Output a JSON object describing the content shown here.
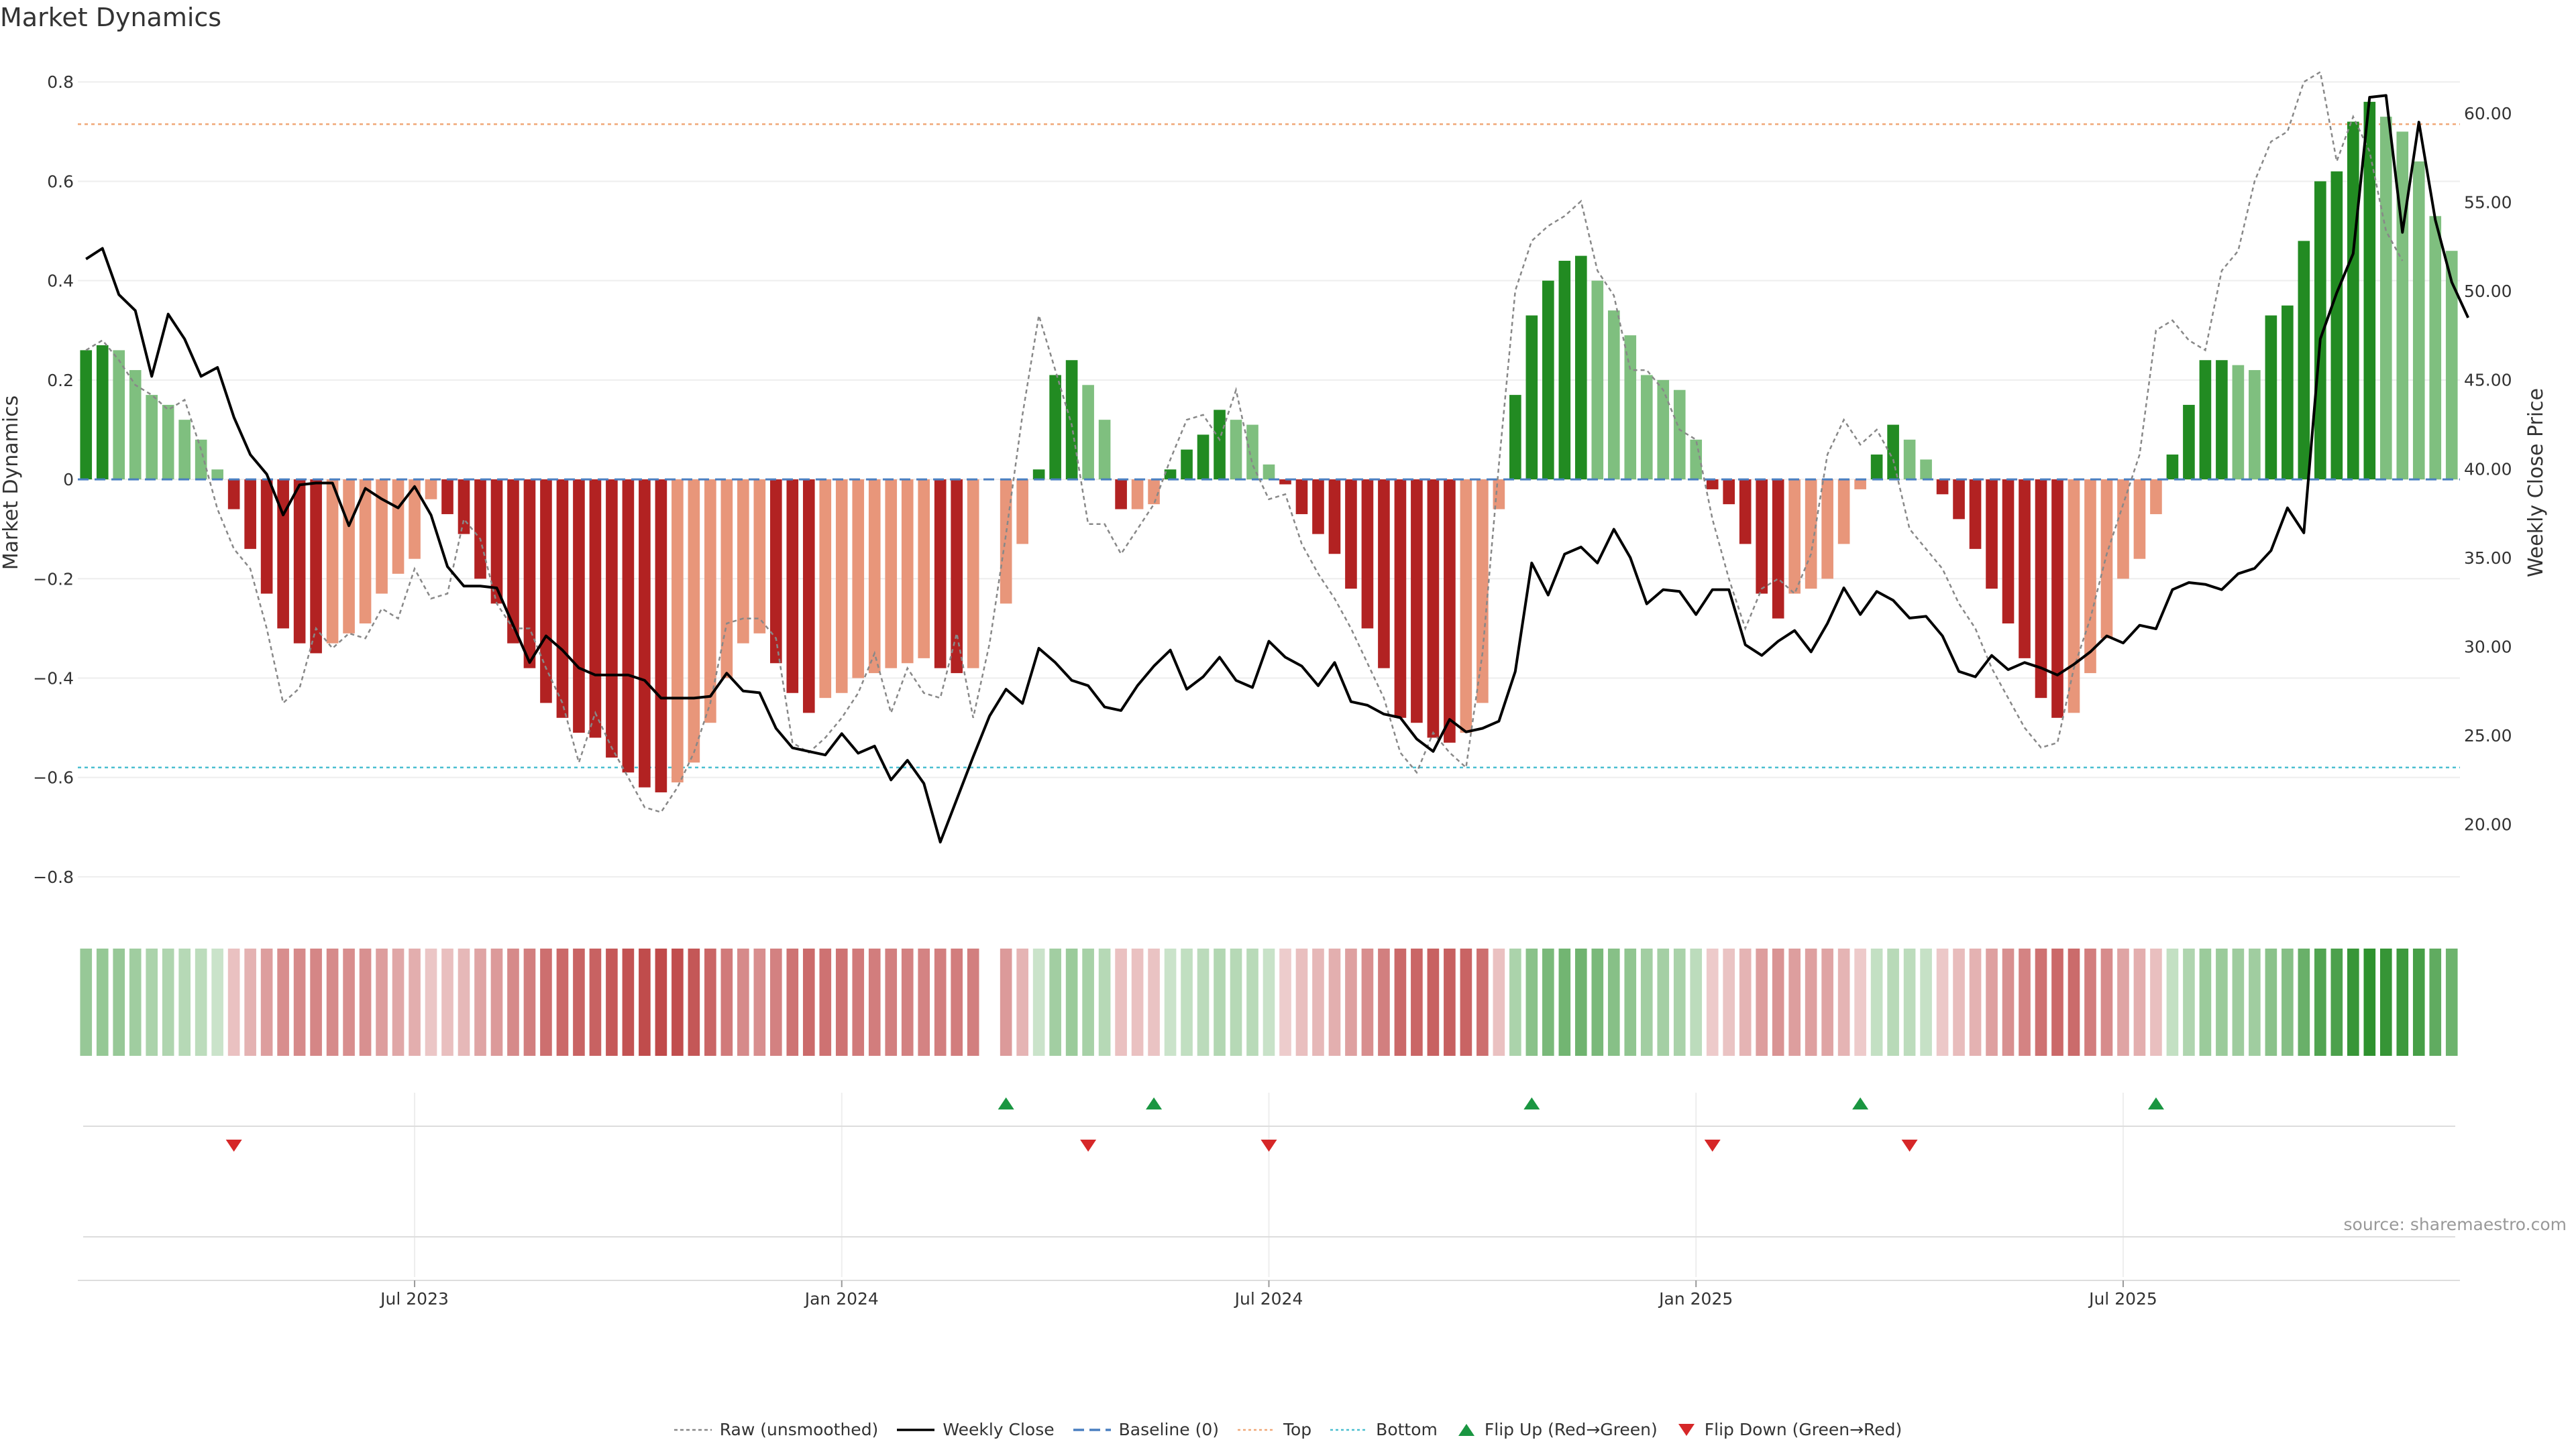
{
  "chart_data": {
    "type": "bar",
    "title": "Market Dynamics",
    "ylabel_left": "Market Dynamics",
    "ylabel_right": "Weekly Close Price",
    "ylim_left": [
      -0.85,
      0.83
    ],
    "ylim_right": [
      15.65,
      62.6
    ],
    "left_ticks": [
      0.8,
      0.6,
      0.4,
      0.2,
      0,
      -0.2,
      -0.4,
      -0.6,
      -0.8
    ],
    "left_tick_labels": [
      "0.8",
      "0.6",
      "0.4",
      "0.2",
      "0",
      "−0.2",
      "−0.4",
      "−0.6",
      "−0.8"
    ],
    "right_ticks": [
      60,
      55,
      50,
      45,
      40,
      35,
      30,
      25,
      20
    ],
    "right_tick_labels": [
      "60.00",
      "55.00",
      "50.00",
      "45.00",
      "40.00",
      "35.00",
      "30.00",
      "25.00",
      "20.00"
    ],
    "top_level": 0.715,
    "bottom_level": -0.58,
    "x_tick_labels": [
      "Jul 2023",
      "Jan 2024",
      "Jul 2024",
      "Jan 2025",
      "Jul 2025"
    ],
    "x_tick_index": [
      20,
      46,
      72,
      98,
      124
    ],
    "values": [
      0.26,
      0.27,
      0.26,
      0.22,
      0.17,
      0.15,
      0.12,
      0.08,
      0.02,
      -0.06,
      -0.14,
      -0.23,
      -0.3,
      -0.33,
      -0.35,
      -0.33,
      -0.31,
      -0.29,
      -0.23,
      -0.19,
      -0.16,
      -0.04,
      -0.07,
      -0.11,
      -0.2,
      -0.25,
      -0.33,
      -0.38,
      -0.45,
      -0.48,
      -0.51,
      -0.52,
      -0.56,
      -0.59,
      -0.62,
      -0.63,
      -0.61,
      -0.57,
      -0.49,
      -0.4,
      -0.33,
      -0.31,
      -0.37,
      -0.43,
      -0.47,
      -0.44,
      -0.43,
      -0.4,
      -0.39,
      -0.38,
      -0.37,
      -0.36,
      -0.38,
      -0.39,
      -0.38,
      null,
      -0.25,
      -0.13,
      0.02,
      0.21,
      0.24,
      0.19,
      0.12,
      -0.06,
      -0.06,
      -0.05,
      0.02,
      0.06,
      0.09,
      0.14,
      0.12,
      0.11,
      0.03,
      -0.01,
      -0.07,
      -0.11,
      -0.15,
      -0.22,
      -0.3,
      -0.38,
      -0.48,
      -0.49,
      -0.52,
      -0.53,
      -0.51,
      -0.45,
      -0.06,
      0.17,
      0.33,
      0.4,
      0.44,
      0.45,
      0.4,
      0.34,
      0.29,
      0.21,
      0.2,
      0.18,
      0.08,
      -0.02,
      -0.05,
      -0.13,
      -0.23,
      -0.28,
      -0.23,
      -0.22,
      -0.2,
      -0.13,
      -0.02,
      0.05,
      0.11,
      0.08,
      0.04,
      -0.03,
      -0.08,
      -0.14,
      -0.22,
      -0.29,
      -0.36,
      -0.44,
      -0.48,
      -0.47,
      -0.39,
      -0.32,
      -0.2,
      -0.16,
      -0.07,
      0.05,
      0.15,
      0.24,
      0.24,
      0.23,
      0.22,
      0.33,
      0.35,
      0.48,
      0.6,
      0.62,
      0.72,
      0.76,
      0.73,
      0.7,
      0.64,
      0.53,
      0.46
    ],
    "raw": [
      0.26,
      0.28,
      0.24,
      0.19,
      0.17,
      0.14,
      0.16,
      0.06,
      -0.06,
      -0.14,
      -0.18,
      -0.3,
      -0.45,
      -0.42,
      -0.3,
      -0.34,
      -0.31,
      -0.32,
      -0.26,
      -0.28,
      -0.18,
      -0.24,
      -0.23,
      -0.08,
      -0.12,
      -0.25,
      -0.3,
      -0.3,
      -0.38,
      -0.45,
      -0.57,
      -0.47,
      -0.54,
      -0.6,
      -0.66,
      -0.67,
      -0.62,
      -0.55,
      -0.45,
      -0.29,
      -0.28,
      -0.28,
      -0.32,
      -0.53,
      -0.55,
      -0.52,
      -0.48,
      -0.43,
      -0.35,
      -0.47,
      -0.38,
      -0.43,
      -0.44,
      -0.31,
      -0.48,
      -0.33,
      -0.11,
      0.13,
      0.33,
      0.22,
      0.11,
      -0.09,
      -0.09,
      -0.15,
      -0.1,
      -0.05,
      0.04,
      0.12,
      0.13,
      0.08,
      0.18,
      0.03,
      -0.04,
      -0.03,
      -0.13,
      -0.19,
      -0.24,
      -0.3,
      -0.37,
      -0.44,
      -0.55,
      -0.59,
      -0.51,
      -0.55,
      -0.58,
      -0.35,
      0.03,
      0.38,
      0.48,
      0.51,
      0.53,
      0.56,
      0.42,
      0.37,
      0.22,
      0.22,
      0.18,
      0.1,
      0.08,
      -0.08,
      -0.2,
      -0.3,
      -0.22,
      -0.2,
      -0.23,
      -0.15,
      0.05,
      0.12,
      0.07,
      0.1,
      0.04,
      -0.1,
      -0.14,
      -0.18,
      -0.25,
      -0.3,
      -0.38,
      -0.44,
      -0.5,
      -0.54,
      -0.53,
      -0.38,
      -0.28,
      -0.15,
      -0.05,
      0.05,
      0.3,
      0.32,
      0.28,
      0.26,
      0.42,
      0.46,
      0.6,
      0.68,
      0.7,
      0.8,
      0.82,
      0.64,
      0.73,
      0.66,
      0.5,
      0.44
    ],
    "weekly_close": [
      51.8,
      52.4,
      49.8,
      48.9,
      45.2,
      48.7,
      47.3,
      45.2,
      45.7,
      42.9,
      40.8,
      39.7,
      37.4,
      39.1,
      39.2,
      39.2,
      36.8,
      38.9,
      38.3,
      37.8,
      39.0,
      37.4,
      34.5,
      33.4,
      33.4,
      33.3,
      31.2,
      29.1,
      30.6,
      29.8,
      28.8,
      28.4,
      28.4,
      28.4,
      28.1,
      27.1,
      27.1,
      27.1,
      27.2,
      28.5,
      27.5,
      27.4,
      25.4,
      24.3,
      24.1,
      23.9,
      25.1,
      24.0,
      24.4,
      22.5,
      23.6,
      22.3,
      19.0,
      21.4,
      23.8,
      26.1,
      27.6,
      26.8,
      29.9,
      29.1,
      28.1,
      27.8,
      26.6,
      26.4,
      27.8,
      28.9,
      29.8,
      27.6,
      28.3,
      29.4,
      28.1,
      27.7,
      30.3,
      29.4,
      28.9,
      27.8,
      29.1,
      26.9,
      26.7,
      26.2,
      26.0,
      24.8,
      24.1,
      25.9,
      25.2,
      25.4,
      25.8,
      28.6,
      34.7,
      32.9,
      35.2,
      35.6,
      34.7,
      36.6,
      35.0,
      32.4,
      33.2,
      33.1,
      31.8,
      33.2,
      33.2,
      30.1,
      29.5,
      30.3,
      30.9,
      29.7,
      31.3,
      33.3,
      31.8,
      33.1,
      32.6,
      31.6,
      31.7,
      30.6,
      28.6,
      28.3,
      29.5,
      28.7,
      29.1,
      28.8,
      28.4,
      29.0,
      29.7,
      30.6,
      30.2,
      31.2,
      31.0,
      33.2,
      33.6,
      33.5,
      33.2,
      34.1,
      34.4,
      35.4,
      37.8,
      36.4,
      47.3,
      49.9,
      52.1,
      60.9,
      61.0,
      53.3,
      59.5,
      54.0,
      50.5,
      48.5
    ],
    "gap_index": [
      55
    ],
    "flip_up_index": [
      56,
      65,
      88,
      108,
      126
    ],
    "flip_down_index": [
      9,
      61,
      72,
      99,
      111
    ],
    "series": [
      {
        "name": "Raw (unsmoothed)"
      },
      {
        "name": "Weekly Close"
      },
      {
        "name": "Baseline (0)"
      },
      {
        "name": "Top"
      },
      {
        "name": "Bottom"
      },
      {
        "name": "Flip Up (Red→Green)"
      },
      {
        "name": "Flip Down (Green→Red)"
      }
    ]
  },
  "colors": {
    "green_strong": "#228b22",
    "green_light": "#7fbf7f",
    "red_strong": "#b22222",
    "red_light": "#e8967a",
    "close_line": "#000000",
    "raw_line": "#888888",
    "baseline": "#4a7fc1",
    "top_line": "#f0a878",
    "bottom_line": "#4bbfd0",
    "flip_up": "#1a9641",
    "flip_down": "#d62728"
  },
  "source": "source: sharemaestro.com"
}
